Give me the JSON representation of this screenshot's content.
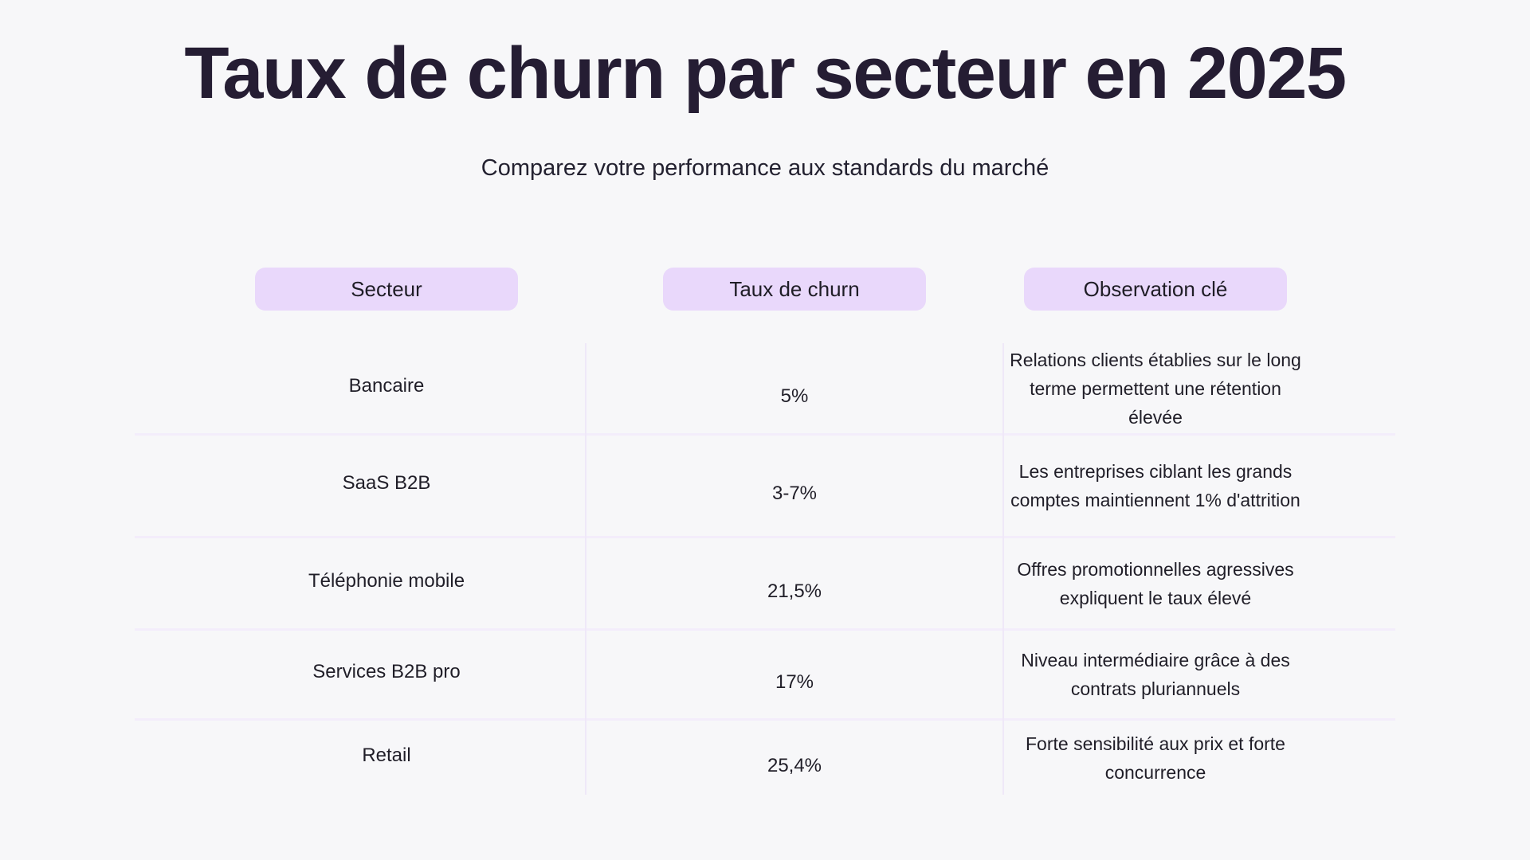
{
  "page": {
    "title": "Taux de churn par secteur en 2025",
    "subtitle": "Comparez votre performance aux standards du marché"
  },
  "colors": {
    "background": "#f7f7f9",
    "title_text": "#251d33",
    "body_text": "#201e28",
    "header_pill_background": "#e9d8fb",
    "divider": "#f3edfb"
  },
  "table": {
    "columns": [
      {
        "label": "Secteur"
      },
      {
        "label": "Taux de churn"
      },
      {
        "label": "Observation clé"
      }
    ],
    "rows": [
      {
        "secteur": "Bancaire",
        "taux": "5%",
        "observation": "Relations clients établies sur le long terme permettent une rétention élevée"
      },
      {
        "secteur": "SaaS B2B",
        "taux": "3-7%",
        "observation": "Les entreprises ciblant les grands comptes maintiennent 1% d'attrition"
      },
      {
        "secteur": "Téléphonie mobile",
        "taux": "21,5%",
        "observation": "Offres promotionnelles agressives expliquent le taux élevé"
      },
      {
        "secteur": "Services B2B pro",
        "taux": "17%",
        "observation": "Niveau intermédiaire grâce à des contrats pluriannuels"
      },
      {
        "secteur": "Retail",
        "taux": "25,4%",
        "observation": "Forte sensibilité aux prix et forte concurrence"
      }
    ]
  },
  "chart_data": {
    "type": "table",
    "title": "Taux de churn par secteur en 2025",
    "subtitle": "Comparez votre performance aux standards du marché",
    "columns": [
      "Secteur",
      "Taux de churn",
      "Observation clé"
    ],
    "rows": [
      [
        "Bancaire",
        "5%",
        "Relations clients établies sur le long terme permettent une rétention élevée"
      ],
      [
        "SaaS B2B",
        "3-7%",
        "Les entreprises ciblant les grands comptes maintiennent 1% d'attrition"
      ],
      [
        "Téléphonie mobile",
        "21,5%",
        "Offres promotionnelles agressives expliquent le taux élevé"
      ],
      [
        "Services B2B pro",
        "17%",
        "Niveau intermédiaire grâce à des contrats pluriannuels"
      ],
      [
        "Retail",
        "25,4%",
        "Forte sensibilité aux prix et forte concurrence"
      ]
    ],
    "churn_rates_numeric_percent": {
      "Bancaire": 5,
      "SaaS B2B": [
        3,
        7
      ],
      "Téléphonie mobile": 21.5,
      "Services B2B pro": 17,
      "Retail": 25.4
    }
  }
}
